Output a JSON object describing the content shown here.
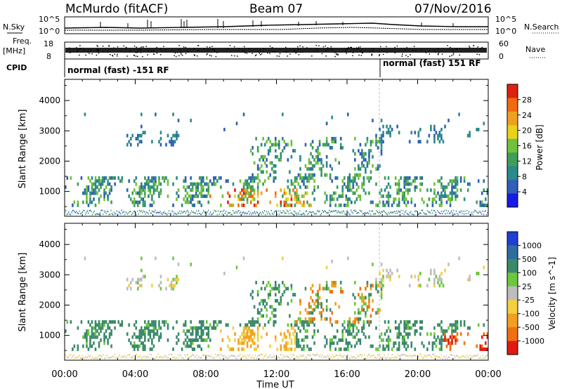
{
  "header": {
    "station": "McMurdo (fitACF)",
    "beam": "Beam 07",
    "date": "07/Nov/2016"
  },
  "noise_panel": {
    "left_label": "N.Sky",
    "right_label": "N.Search",
    "y_top_tick": "10^5",
    "y_bottom_tick": "10^0",
    "right_top_tick": "10^5",
    "right_bottom_tick": "10^0"
  },
  "freq_panel": {
    "left_label_top": "Freq.",
    "left_label_bottom": "[MHz]",
    "left_ticks": [
      "18",
      "8"
    ],
    "right_label": "Nave",
    "right_ticks": [
      "60",
      "0"
    ]
  },
  "cpid": {
    "label": "CPID",
    "segments": [
      {
        "name": "normal (fast) -151 RF",
        "start_hour": 0
      },
      {
        "name": "normal (fast) 151 RF",
        "start_hour": 18
      }
    ]
  },
  "x_axis": {
    "label": "Time UT",
    "ticks": [
      "00:00",
      "04:00",
      "08:00",
      "12:00",
      "16:00",
      "20:00",
      "00:00"
    ],
    "range_hours": [
      0,
      24
    ]
  },
  "chart_data": [
    {
      "type": "heatmap",
      "panel": "power",
      "ylabel": "Slant Range [km]",
      "ylim": [
        180,
        4700
      ],
      "yticks": [
        "1000",
        "2000",
        "3000",
        "4000"
      ],
      "colorbar_label": "Power [dB]",
      "colorbar_ticks": [
        "4",
        "8",
        "12",
        "16",
        "20",
        "24",
        "28"
      ],
      "colorbar_range": [
        0,
        30
      ],
      "colors": [
        "#1a1ae6",
        "#2f5fb8",
        "#2a8a8a",
        "#3f9e5a",
        "#6fc23a",
        "#e8d21a",
        "#f0a020",
        "#f06a10",
        "#e02010"
      ]
    },
    {
      "type": "heatmap",
      "panel": "velocity",
      "ylabel": "Slant Range [km]",
      "ylim": [
        180,
        4700
      ],
      "yticks": [
        "1000",
        "2000",
        "3000",
        "4000"
      ],
      "colorbar_label": "Velocity [m s^-1]",
      "colorbar_ticks": [
        "1000",
        "500",
        "100",
        "25",
        "-25",
        "-100",
        "-500",
        "-1000"
      ],
      "colors": [
        "#1e3fd0",
        "#2f6aa0",
        "#3a8a6a",
        "#6cc83a",
        "#bdbdbd",
        "#f2d040",
        "#f2a020",
        "#f07010",
        "#e01a10"
      ]
    }
  ]
}
